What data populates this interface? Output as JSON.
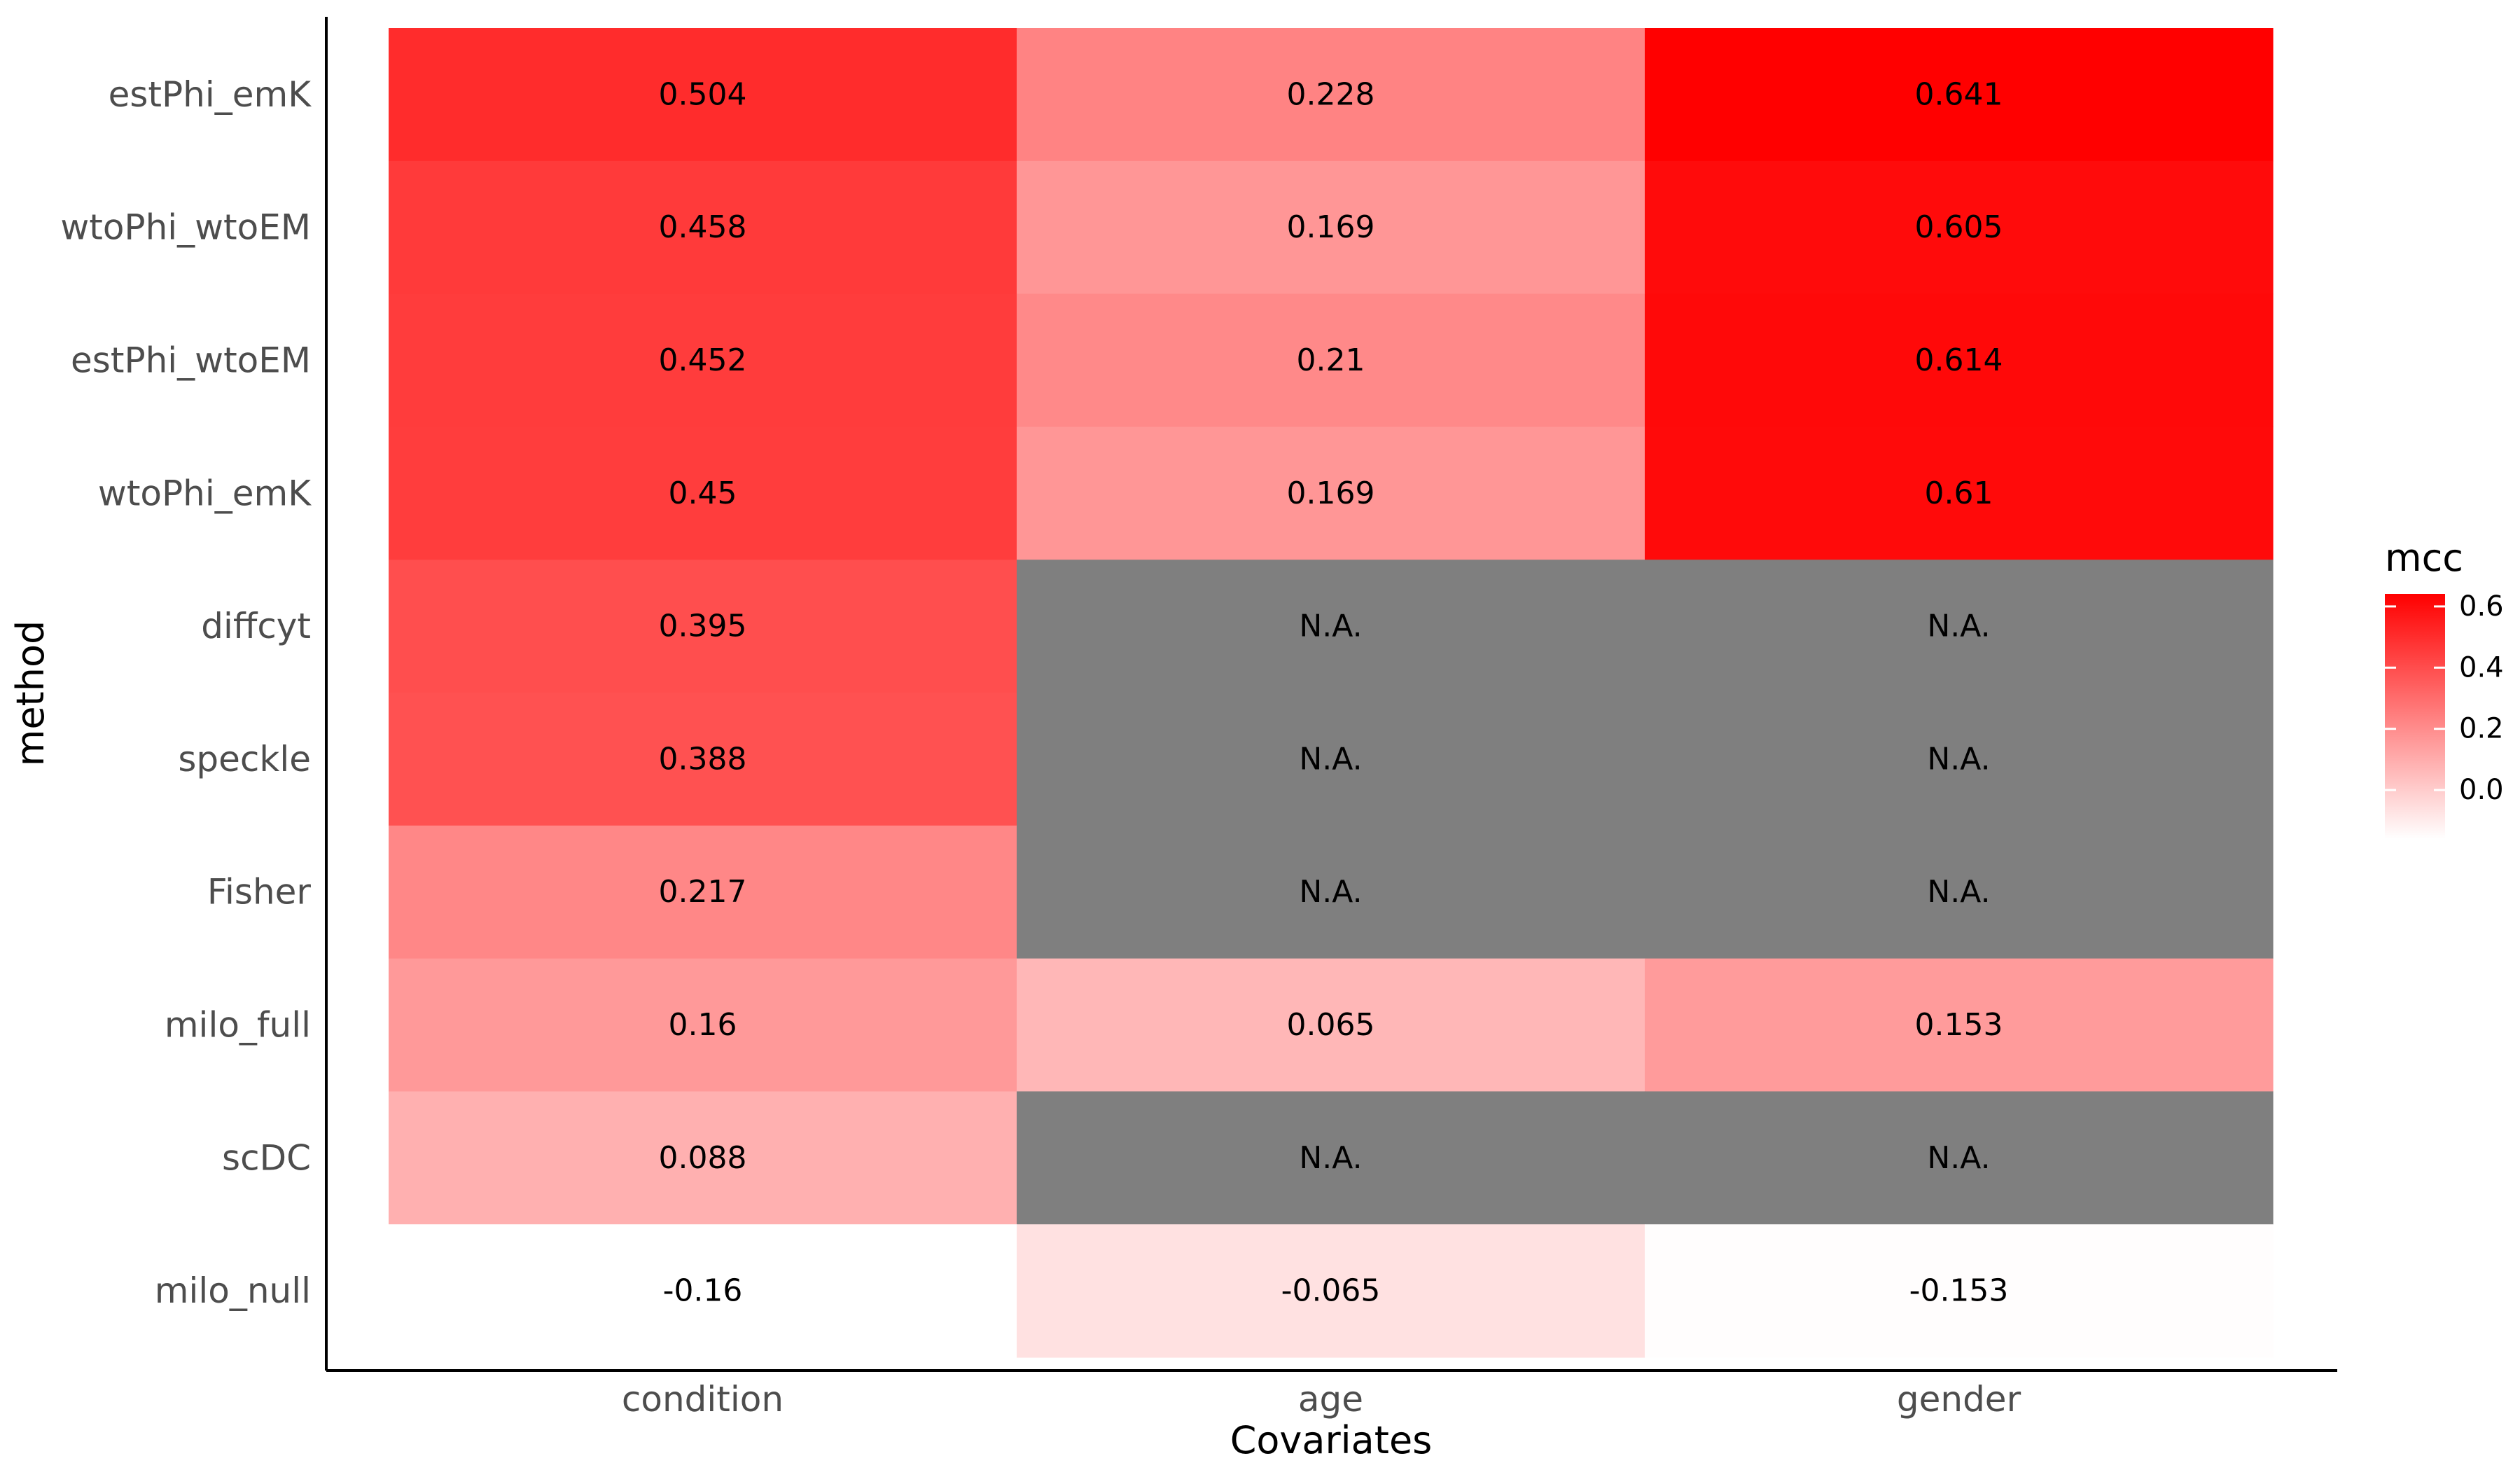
{
  "chart_data": {
    "type": "heatmap",
    "xlabel": "Covariates",
    "ylabel": "method",
    "x_categories": [
      "condition",
      "age",
      "gender"
    ],
    "y_categories": [
      "estPhi_emK",
      "wtoPhi_wtoEM",
      "estPhi_wtoEM",
      "wtoPhi_emK",
      "diffcyt",
      "speckle",
      "Fisher",
      "milo_full",
      "scDC",
      "milo_null"
    ],
    "values": [
      [
        0.504,
        0.228,
        0.641
      ],
      [
        0.458,
        0.169,
        0.605
      ],
      [
        0.452,
        0.21,
        0.614
      ],
      [
        0.45,
        0.169,
        0.61
      ],
      [
        0.395,
        null,
        null
      ],
      [
        0.388,
        null,
        null
      ],
      [
        0.217,
        null,
        null
      ],
      [
        0.16,
        0.065,
        0.153
      ],
      [
        0.088,
        null,
        null
      ],
      [
        -0.16,
        -0.065,
        -0.153
      ]
    ],
    "labels": [
      [
        "0.504",
        "0.228",
        "0.641"
      ],
      [
        "0.458",
        "0.169",
        "0.605"
      ],
      [
        "0.452",
        "0.21",
        "0.614"
      ],
      [
        "0.45",
        "0.169",
        "0.61"
      ],
      [
        "0.395",
        "N.A.",
        "N.A."
      ],
      [
        "0.388",
        "N.A.",
        "N.A."
      ],
      [
        "0.217",
        "N.A.",
        "N.A."
      ],
      [
        "0.16",
        "0.065",
        "0.153"
      ],
      [
        "0.088",
        "N.A.",
        "N.A."
      ],
      [
        "-0.16",
        "-0.065",
        "-0.153"
      ]
    ],
    "na_color": "#7f7f7f",
    "color_low": "#ffffff",
    "color_high": "#ff0000",
    "color_range": [
      -0.16,
      0.641
    ],
    "legend": {
      "title": "mcc",
      "ticks": [
        0.0,
        0.2,
        0.4,
        0.6
      ],
      "tick_labels": [
        "0.0",
        "0.2",
        "0.4",
        "0.6"
      ],
      "position": "right"
    },
    "grid": false
  }
}
